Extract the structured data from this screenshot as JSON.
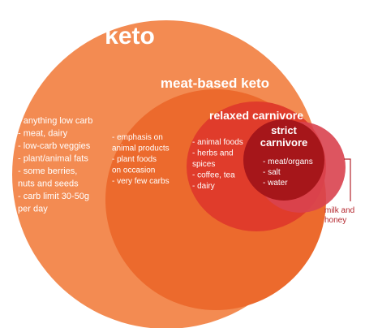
{
  "circles": [
    {
      "title": [
        "keto"
      ],
      "items": [
        "- anything low carb",
        "- meat, dairy",
        "- low-carb veggies",
        "- plant/animal fats",
        "- some berries,",
        "  nuts and seeds",
        "- carb limit 30-50g",
        "  per day"
      ]
    },
    {
      "title": [
        "meat-based keto"
      ],
      "items": [
        "- emphasis on",
        "animal products",
        "- plant foods",
        "on occasion",
        "- very few carbs"
      ]
    },
    {
      "title": [
        "relaxed carnivore"
      ],
      "items": [
        "- animal foods",
        "- herbs and",
        "spices",
        "- coffee, tea",
        "- dairy"
      ]
    },
    {
      "title": [
        "strict",
        "carnivore"
      ],
      "items": [
        "- meat/organs",
        "- salt",
        "- water"
      ]
    }
  ],
  "annotation": [
    "milk and",
    "honey"
  ]
}
